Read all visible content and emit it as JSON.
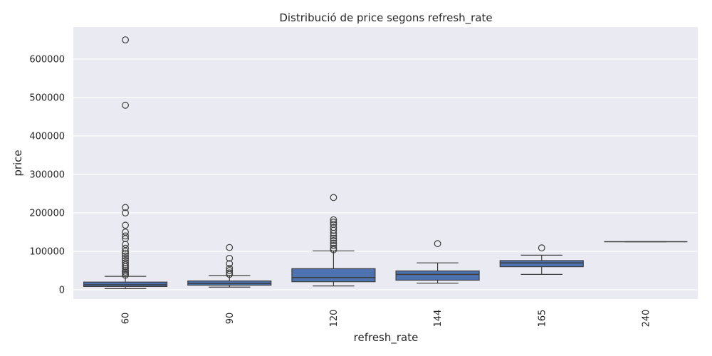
{
  "chart_data": {
    "type": "box",
    "title": "Distribució de price segons refresh_rate",
    "xlabel": "refresh_rate",
    "ylabel": "price",
    "categories": [
      "60",
      "90",
      "120",
      "144",
      "165",
      "240"
    ],
    "ylim": [
      -25000,
      680000
    ],
    "yticks": [
      0,
      100000,
      200000,
      300000,
      400000,
      500000,
      600000
    ],
    "ytick_labels": [
      "0",
      "100000",
      "200000",
      "300000",
      "400000",
      "500000",
      "600000"
    ],
    "grid": true,
    "background": "#eaeaf2",
    "box_color": "#4c72b0",
    "boxes": [
      {
        "category": "60",
        "whisker_low": 3000,
        "q1": 8500,
        "median": 13000,
        "q3": 20000,
        "whisker_high": 35000,
        "outliers": [
          650000,
          480000,
          214000,
          200000,
          168000,
          150000,
          140000,
          133000,
          118000,
          108000,
          100000,
          94000,
          88000,
          82000,
          76000,
          70000,
          65000,
          60000,
          55000,
          50000,
          46000,
          42000,
          38000
        ]
      },
      {
        "category": "90",
        "whisker_low": 7000,
        "q1": 12000,
        "median": 16500,
        "q3": 23000,
        "whisker_high": 37000,
        "outliers": [
          110000,
          82000,
          68000,
          56000,
          50000,
          44000,
          40000
        ]
      },
      {
        "category": "120",
        "whisker_low": 10000,
        "q1": 21000,
        "median": 32000,
        "q3": 55000,
        "whisker_high": 101000,
        "outliers": [
          240000,
          182000,
          176000,
          170000,
          162000,
          155000,
          147000,
          140000,
          134000,
          128000,
          121000,
          115000,
          108000,
          104000
        ]
      },
      {
        "category": "144",
        "whisker_low": 17000,
        "q1": 25000,
        "median": 40000,
        "q3": 49000,
        "whisker_high": 70000,
        "outliers": [
          120000
        ]
      },
      {
        "category": "165",
        "whisker_low": 40000,
        "q1": 60000,
        "median": 70000,
        "q3": 76000,
        "whisker_high": 90000,
        "outliers": [
          109000
        ]
      },
      {
        "category": "240",
        "whisker_low": 125000,
        "q1": 125000,
        "median": 125000,
        "q3": 125000,
        "whisker_high": 125000,
        "outliers": []
      }
    ]
  }
}
